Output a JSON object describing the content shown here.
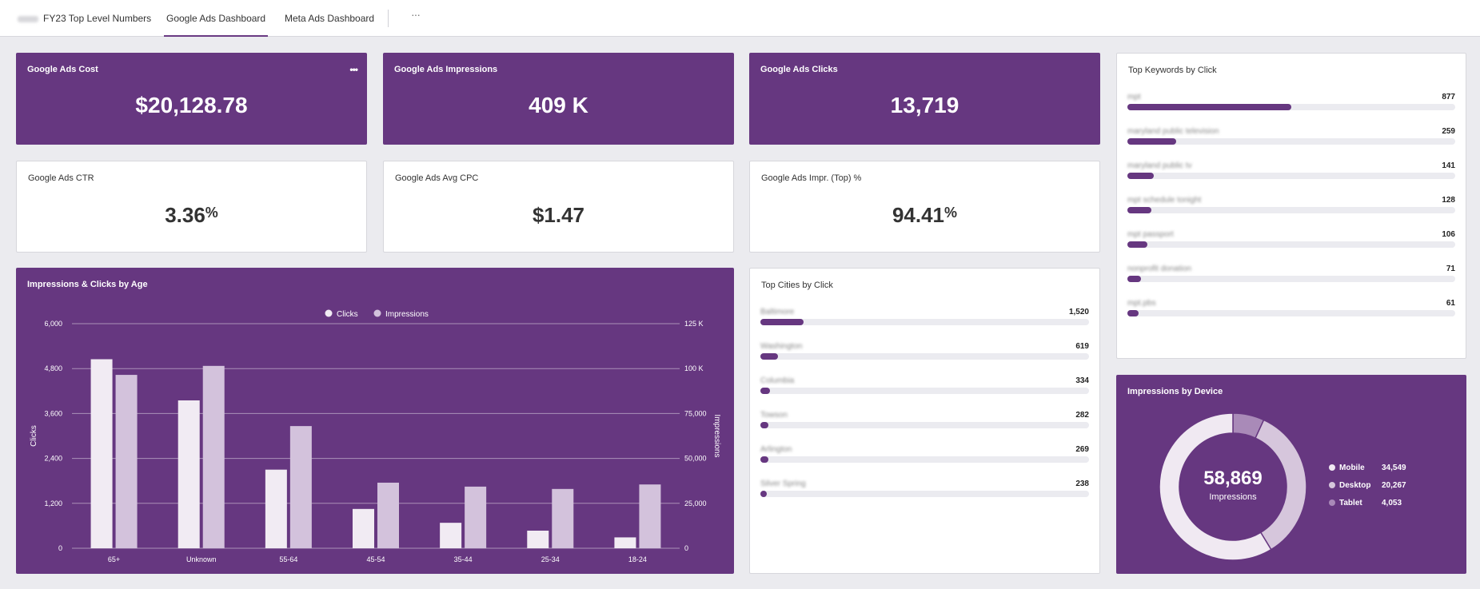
{
  "tabs": [
    {
      "label": "FY23 Top Level Numbers"
    },
    {
      "label": "Google Ads Dashboard"
    },
    {
      "label": "Meta Ads Dashboard"
    }
  ],
  "more_tabs": "···",
  "kpis": {
    "cost": {
      "title": "Google Ads Cost",
      "value": "$20,128.78",
      "menu": "•••"
    },
    "impressions": {
      "title": "Google Ads Impressions",
      "value": "409 K"
    },
    "clicks": {
      "title": "Google Ads Clicks",
      "value": "13,719"
    },
    "ctr": {
      "title": "Google Ads CTR",
      "value": "3.36",
      "unit": "%"
    },
    "cpc": {
      "title": "Google Ads Avg CPC",
      "value": "$1.47"
    },
    "impr_top": {
      "title": "Google Ads Impr. (Top) %",
      "value": "94.41",
      "unit": "%"
    }
  },
  "top_keywords": {
    "title": "Top Keywords by Click",
    "max": 1750,
    "items": [
      {
        "label": "mpt",
        "value": 877
      },
      {
        "label": "maryland public television",
        "value": 259
      },
      {
        "label": "maryland public tv",
        "value": 141
      },
      {
        "label": "mpt schedule tonight",
        "value": 128
      },
      {
        "label": "mpt passport",
        "value": 106
      },
      {
        "label": "nonprofit donation",
        "value": 71
      },
      {
        "label": "mpt.pbs",
        "value": 61
      }
    ]
  },
  "top_cities": {
    "title": "Top Cities by Click",
    "max": 11600,
    "items": [
      {
        "label": "Baltimore",
        "value": "1,520",
        "n": 1520
      },
      {
        "label": "Washington",
        "value": "619",
        "n": 619
      },
      {
        "label": "Columbia",
        "value": "334",
        "n": 334
      },
      {
        "label": "Towson",
        "value": "282",
        "n": 282
      },
      {
        "label": "Arlington",
        "value": "269",
        "n": 269
      },
      {
        "label": "Silver Spring",
        "value": "238",
        "n": 238
      }
    ]
  },
  "device": {
    "title": "Impressions by Device",
    "total": "58,869",
    "total_label": "Impressions",
    "segments": [
      {
        "name": "Mobile",
        "value": "34,549",
        "n": 34549,
        "color": "#f0e9f2"
      },
      {
        "name": "Desktop",
        "value": "20,267",
        "n": 20267,
        "color": "#d6c6dc"
      },
      {
        "name": "Tablet",
        "value": "4,053",
        "n": 4053,
        "color": "#a98ab8"
      }
    ]
  },
  "colors": {
    "purple": "#663780",
    "clicks": "#f1ebf3",
    "impressions": "#d3c2dc"
  },
  "chart_data": {
    "type": "bar",
    "title": "Impressions & Clicks by Age",
    "categories": [
      "65+",
      "Unknown",
      "55-64",
      "45-54",
      "35-44",
      "25-34",
      "18-24"
    ],
    "series": [
      {
        "name": "Clicks",
        "axis": "left",
        "values": [
          5050,
          3950,
          2100,
          1050,
          680,
          470,
          290
        ]
      },
      {
        "name": "Impressions",
        "axis": "right",
        "values": [
          96500,
          101500,
          68000,
          36500,
          34300,
          33000,
          35500
        ]
      }
    ],
    "ylabel": "Clicks",
    "y2label": "Impressions",
    "ylim": [
      0,
      6000
    ],
    "y2lim": [
      0,
      125000
    ],
    "yticks": [
      "0",
      "1,200",
      "2,400",
      "3,600",
      "4,800",
      "6,000"
    ],
    "y2ticks": [
      "0",
      "25,000",
      "50,000",
      "75,000",
      "100 K",
      "125 K"
    ],
    "legend": "top-center"
  }
}
